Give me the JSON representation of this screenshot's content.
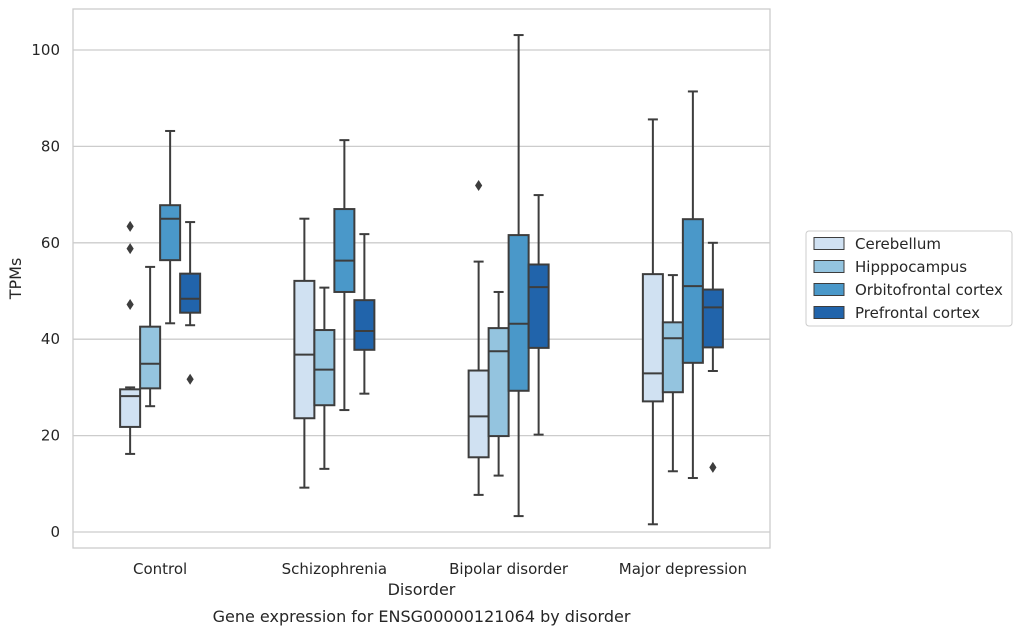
{
  "chart_data": {
    "type": "box",
    "xlabel": "Disorder",
    "ylabel": "TPMs",
    "caption": "Gene expression for ENSG00000121064 by disorder",
    "ylim": [
      -3,
      108
    ],
    "yticks": [
      0,
      20,
      40,
      60,
      80,
      100
    ],
    "grid": true,
    "legend_position": "right",
    "categories": [
      "Control",
      "Schizophrenia",
      "Bipolar disorder",
      "Major depression"
    ],
    "series": [
      {
        "name": "Cerebellum",
        "color": "#d0e1f2",
        "boxes": [
          {
            "whisker_low": 16.2,
            "q1": 21.8,
            "median": 28.2,
            "q3": 29.6,
            "whisker_high": 30.0,
            "outliers": [
              47.2,
              58.8,
              63.4
            ]
          },
          {
            "whisker_low": 9.2,
            "q1": 23.6,
            "median": 36.8,
            "q3": 52.1,
            "whisker_high": 65.0,
            "outliers": []
          },
          {
            "whisker_low": 7.7,
            "q1": 15.5,
            "median": 24.0,
            "q3": 33.5,
            "whisker_high": 56.1,
            "outliers": [
              71.9
            ]
          },
          {
            "whisker_low": 1.6,
            "q1": 27.1,
            "median": 32.9,
            "q3": 53.5,
            "whisker_high": 85.6,
            "outliers": []
          }
        ]
      },
      {
        "name": "Hipppocampus",
        "color": "#94c4df",
        "boxes": [
          {
            "whisker_low": 26.1,
            "q1": 29.8,
            "median": 34.9,
            "q3": 42.6,
            "whisker_high": 55.0,
            "outliers": []
          },
          {
            "whisker_low": 13.1,
            "q1": 26.3,
            "median": 33.7,
            "q3": 41.9,
            "whisker_high": 50.7,
            "outliers": []
          },
          {
            "whisker_low": 11.7,
            "q1": 19.9,
            "median": 37.5,
            "q3": 42.3,
            "whisker_high": 49.8,
            "outliers": []
          },
          {
            "whisker_low": 12.6,
            "q1": 29.0,
            "median": 40.2,
            "q3": 43.5,
            "whisker_high": 53.3,
            "outliers": []
          }
        ]
      },
      {
        "name": "Orbitofrontal cortex",
        "color": "#4a98c9",
        "boxes": [
          {
            "whisker_low": 43.3,
            "q1": 56.4,
            "median": 65.0,
            "q3": 67.8,
            "whisker_high": 83.2,
            "outliers": []
          },
          {
            "whisker_low": 25.3,
            "q1": 49.8,
            "median": 56.3,
            "q3": 67.0,
            "whisker_high": 81.3,
            "outliers": []
          },
          {
            "whisker_low": 3.3,
            "q1": 29.3,
            "median": 43.2,
            "q3": 61.6,
            "whisker_high": 103.1,
            "outliers": []
          },
          {
            "whisker_low": 11.2,
            "q1": 35.1,
            "median": 51.0,
            "q3": 64.9,
            "whisker_high": 91.4,
            "outliers": []
          }
        ]
      },
      {
        "name": "Prefrontal cortex",
        "color": "#2164ab",
        "boxes": [
          {
            "whisker_low": 42.9,
            "q1": 45.5,
            "median": 48.4,
            "q3": 53.6,
            "whisker_high": 64.3,
            "outliers": [
              31.7
            ]
          },
          {
            "whisker_low": 28.7,
            "q1": 37.8,
            "median": 41.7,
            "q3": 48.1,
            "whisker_high": 61.8,
            "outliers": []
          },
          {
            "whisker_low": 20.2,
            "q1": 38.2,
            "median": 50.8,
            "q3": 55.5,
            "whisker_high": 69.9,
            "outliers": []
          },
          {
            "whisker_low": 33.4,
            "q1": 38.3,
            "median": 46.6,
            "q3": 50.3,
            "whisker_high": 60.0,
            "outliers": [
              13.4
            ]
          }
        ]
      }
    ]
  }
}
